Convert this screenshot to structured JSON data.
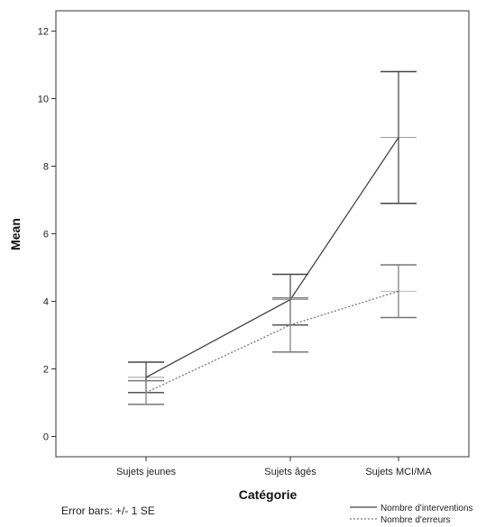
{
  "chart_data": {
    "type": "line",
    "title": "",
    "xlabel": "Catégorie",
    "ylabel": "Mean",
    "categories": [
      "Sujets jeunes",
      "Sujets âgés",
      "Sujets MCI/MA"
    ],
    "ylim": [
      -0.6,
      12.6
    ],
    "yticks": [
      0,
      2,
      4,
      6,
      8,
      10,
      12
    ],
    "grid": false,
    "legend_position": "bottom-right",
    "note": "Error bars: +/- 1 SE",
    "series": [
      {
        "name": "Nombre d'interventions",
        "color": "#444444",
        "dash": "solid",
        "values": [
          1.75,
          4.05,
          8.85
        ],
        "error": [
          0.45,
          0.75,
          1.95
        ]
      },
      {
        "name": "Nombre d'erreurs",
        "color": "#777777",
        "dash": "dotted",
        "values": [
          1.3,
          3.3,
          4.3
        ],
        "error": [
          0.35,
          0.8,
          0.78
        ]
      }
    ]
  }
}
